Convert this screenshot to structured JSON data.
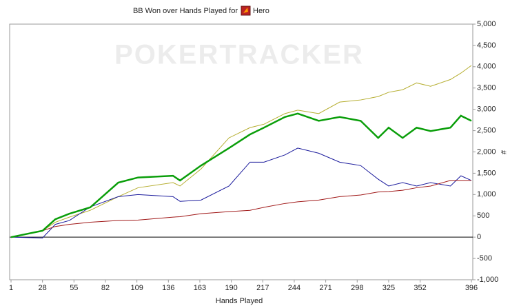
{
  "chart_data": {
    "type": "line",
    "title": "BB Won over Hands Played for",
    "player": "Hero",
    "watermark": "POKERTRACKER",
    "x_label": "Hands Played",
    "y_label": "#",
    "x": [
      1,
      28,
      39,
      51,
      69,
      93,
      110,
      140,
      146,
      164,
      188,
      206,
      218,
      236,
      247,
      265,
      283,
      301,
      316,
      325,
      337,
      349,
      361,
      378,
      387,
      396
    ],
    "xlim": [
      1,
      396
    ],
    "xticks": [
      1,
      28,
      55,
      82,
      109,
      136,
      163,
      190,
      217,
      244,
      271,
      298,
      325,
      352,
      396
    ],
    "ylim": [
      -1000,
      5000
    ],
    "yticks": [
      {
        "value": -1000,
        "label": "-1,000"
      },
      -500,
      0,
      500,
      {
        "value": 1000,
        "label": "1,000"
      },
      {
        "value": 1500,
        "label": "1,500"
      },
      {
        "value": 2000,
        "label": "2,000"
      },
      {
        "value": 2500,
        "label": "2,500"
      },
      {
        "value": 3000,
        "label": "3,000"
      },
      {
        "value": 3500,
        "label": "3,500"
      },
      {
        "value": 4000,
        "label": "4,000"
      },
      {
        "value": 4500,
        "label": "4,500"
      },
      {
        "value": 5000,
        "label": "5,000"
      }
    ],
    "series": [
      {
        "color": "#b5ad2e",
        "width": 1,
        "values": [
          0,
          150,
          350,
          470,
          630,
          950,
          1160,
          1280,
          1200,
          1600,
          2330,
          2570,
          2650,
          2900,
          2980,
          2900,
          3170,
          3220,
          3300,
          3400,
          3460,
          3620,
          3540,
          3700,
          3850,
          4030
        ]
      },
      {
        "color": "#1a1a9c",
        "width": 1,
        "values": [
          0,
          -20,
          300,
          390,
          710,
          950,
          1000,
          950,
          840,
          870,
          1200,
          1760,
          1760,
          1930,
          2090,
          1970,
          1760,
          1680,
          1360,
          1200,
          1280,
          1200,
          1280,
          1200,
          1440,
          1330
        ]
      },
      {
        "color": "#a01818",
        "width": 1,
        "values": [
          0,
          150,
          250,
          300,
          350,
          390,
          400,
          470,
          480,
          550,
          600,
          630,
          700,
          790,
          830,
          870,
          950,
          990,
          1060,
          1070,
          1100,
          1160,
          1200,
          1330,
          1330,
          1330
        ]
      },
      {
        "color": "#0a9e0a",
        "width": 2.5,
        "values": [
          0,
          150,
          420,
          550,
          700,
          1280,
          1400,
          1440,
          1330,
          1680,
          2090,
          2410,
          2570,
          2820,
          2900,
          2730,
          2820,
          2730,
          2330,
          2570,
          2330,
          2570,
          2490,
          2570,
          2850,
          2730
        ]
      }
    ],
    "zero_line": true
  }
}
